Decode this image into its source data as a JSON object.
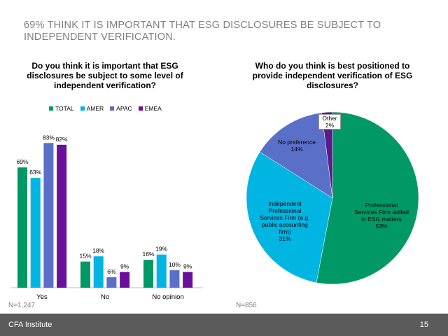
{
  "slide": {
    "title": "69% THINK IT IS IMPORTANT THAT ESG DISCLOSURES BE SUBJECT TO INDEPENDENT VERIFICATION."
  },
  "footer": {
    "org": "CFA Institute",
    "page": "15"
  },
  "colors": {
    "total": "#009966",
    "amer": "#00b5e2",
    "apac": "#5a6fc8",
    "emea": "#6b0f9c",
    "other": "#5a1a8a"
  },
  "chart_data": [
    {
      "type": "bar",
      "title": "Do you think it is important that ESG disclosures be subject to some level of independent verification?",
      "categories": [
        "Yes",
        "No",
        "No opinion"
      ],
      "series": [
        {
          "name": "TOTAL",
          "values": [
            69,
            15,
            16
          ]
        },
        {
          "name": "AMER",
          "values": [
            63,
            18,
            19
          ]
        },
        {
          "name": "APAC",
          "values": [
            83,
            6,
            10
          ]
        },
        {
          "name": "EMEA",
          "values": [
            82,
            9,
            9
          ]
        }
      ],
      "value_suffix": "%",
      "ylim": [
        0,
        100
      ],
      "legend": "top",
      "note": "N=1,247"
    },
    {
      "type": "pie",
      "title": "Who do you think is best positioned to provide independent verification of ESG disclosures?",
      "slices": [
        {
          "label": "Professional Services Firm skilled in ESG matters",
          "value": 53
        },
        {
          "label": "Independent Professional Services Firm (e.g. public accounting firm)",
          "value": 31
        },
        {
          "label": "No preference",
          "value": 14
        },
        {
          "label": "Other",
          "value": 2
        }
      ],
      "note": "N=856"
    }
  ]
}
